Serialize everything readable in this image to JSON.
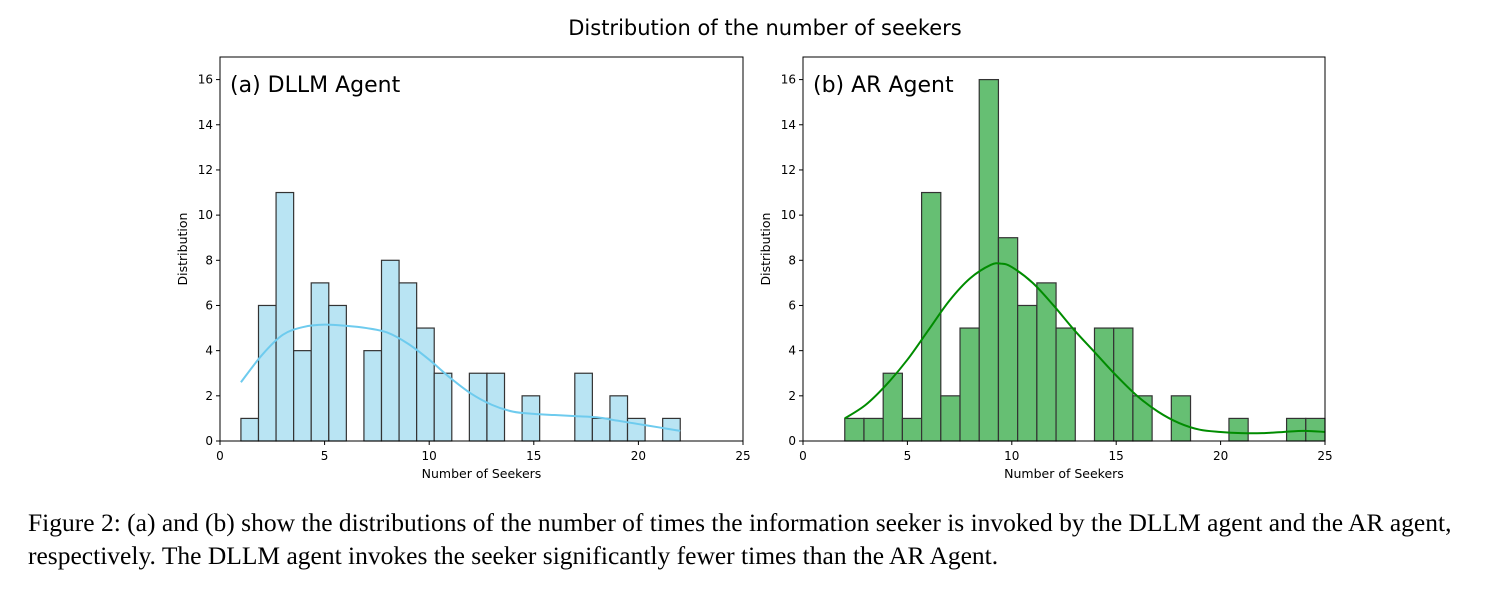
{
  "figure_title": "Distribution of the number of seekers",
  "caption": "Figure 2: (a) and (b) show the distributions of the number of times the information seeker is invoked by the DLLM agent and the AR agent, respectively. The DLLM agent invokes the seeker significantly fewer times than the AR Agent.",
  "chart_data": [
    {
      "type": "bar",
      "subtype": "histogram-with-kde",
      "panel_label": "(a) DLLM Agent",
      "xlabel": "Number of Seekers",
      "ylabel": "Distribution",
      "xlim": [
        0,
        25
      ],
      "ylim": [
        0,
        17
      ],
      "xticks": [
        0,
        5,
        10,
        15,
        20,
        25
      ],
      "yticks": [
        0,
        2,
        4,
        6,
        8,
        10,
        12,
        14,
        16
      ],
      "grid": false,
      "bin_range": [
        1,
        22
      ],
      "counts": [
        1,
        6,
        11,
        4,
        7,
        6,
        0,
        4,
        8,
        7,
        5,
        3,
        0,
        3,
        3,
        0,
        2,
        0,
        0,
        3,
        1,
        2,
        1,
        0,
        1
      ],
      "bar_color": "#b9e4f3",
      "kde_color": "#6ecbee",
      "kde": {
        "x": [
          1,
          2,
          3,
          4,
          5,
          6,
          7,
          8,
          9,
          10,
          11,
          12,
          13,
          14,
          15,
          16,
          17,
          18,
          19,
          20,
          21,
          22
        ],
        "y": [
          2.6,
          3.8,
          4.7,
          5.05,
          5.15,
          5.1,
          5.0,
          4.8,
          4.3,
          3.6,
          2.8,
          2.1,
          1.6,
          1.3,
          1.2,
          1.15,
          1.1,
          1.05,
          0.9,
          0.75,
          0.6,
          0.45
        ]
      }
    },
    {
      "type": "bar",
      "subtype": "histogram-with-kde",
      "panel_label": "(b) AR Agent",
      "xlabel": "Number of Seekers",
      "ylabel": "Distribution",
      "xlim": [
        0,
        25
      ],
      "ylim": [
        0,
        17
      ],
      "xticks": [
        0,
        5,
        10,
        15,
        20,
        25
      ],
      "yticks": [
        0,
        2,
        4,
        6,
        8,
        10,
        12,
        14,
        16
      ],
      "grid": false,
      "bin_range": [
        2,
        25
      ],
      "counts": [
        1,
        1,
        3,
        1,
        11,
        2,
        5,
        16,
        9,
        6,
        7,
        5,
        0,
        5,
        5,
        2,
        0,
        2,
        0,
        0,
        1,
        0,
        0,
        1,
        1
      ],
      "bar_color": "#66bf73",
      "kde_color": "#008c00",
      "kde": {
        "x": [
          2,
          3,
          4,
          5,
          6,
          7,
          8,
          9,
          9.5,
          10,
          11,
          12,
          13,
          14,
          15,
          16,
          17,
          18,
          19,
          20,
          21,
          22,
          23,
          24,
          25
        ],
        "y": [
          1.0,
          1.6,
          2.5,
          3.6,
          4.9,
          6.2,
          7.2,
          7.8,
          7.85,
          7.7,
          7.0,
          6.0,
          4.9,
          3.9,
          2.9,
          2.0,
          1.3,
          0.8,
          0.5,
          0.4,
          0.35,
          0.35,
          0.4,
          0.45,
          0.4
        ]
      }
    }
  ]
}
